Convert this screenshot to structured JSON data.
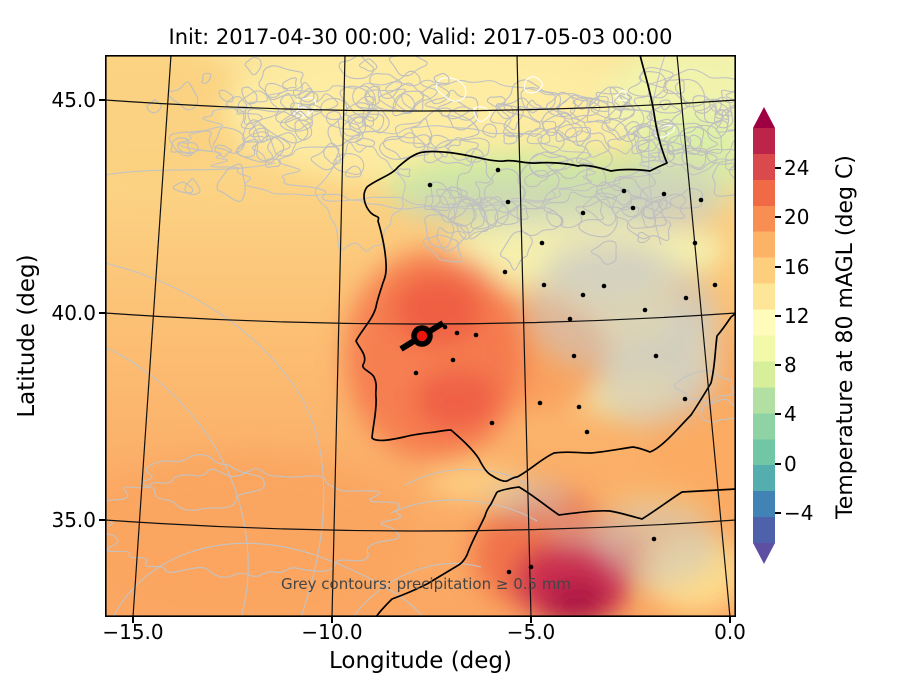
{
  "figure": {
    "title": "Init: 2017-04-30 00:00; Valid: 2017-05-03 00:00",
    "annotation": "Grey contours: precipitation ≥ 0.5 mm"
  },
  "axes": {
    "x": {
      "label": "Longitude (deg)",
      "tick_labels": [
        "−15.0",
        "−10.0",
        "−5.0",
        "0.0"
      ]
    },
    "y": {
      "label": "Latitude (deg)",
      "tick_labels": [
        "45.0",
        "40.0",
        "35.0"
      ]
    }
  },
  "colorbar": {
    "label": "Temperature at 80 mAGL (deg C)",
    "tick_labels": [
      "24",
      "20",
      "16",
      "12",
      "8",
      "4",
      "0",
      "−4"
    ],
    "extend_over_color": "#9e0142",
    "extend_under_color": "#5e4fa2",
    "contour_grey": "#bfbfbf",
    "marker_color": "#e8160c"
  },
  "chart_data": {
    "type": "heatmap",
    "title": "Init: 2017-04-30 00:00; Valid: 2017-05-03 00:00",
    "xlabel": "Longitude (deg)",
    "ylabel": "Latitude (deg)",
    "xlim": [
      -15.7,
      0.2
    ],
    "ylim": [
      32.7,
      46.1
    ],
    "x_ticks": [
      -15.0,
      -10.0,
      -5.0,
      0.0
    ],
    "y_ticks": [
      45.0,
      40.0,
      35.0
    ],
    "colorbar": {
      "label": "Temperature at 80 mAGL (deg C)",
      "ticks": [
        24,
        20,
        16,
        12,
        8,
        4,
        0,
        -4
      ],
      "colormap": "Spectral reversed (purple-blue low to dark crimson high)",
      "extends": "both"
    },
    "overlay_contours": {
      "color": "grey",
      "meaning": "precipitation ≥ 0.5 mm"
    },
    "site_marker": {
      "approx_lon": -7.8,
      "approx_lat": 39.5,
      "style": "red dot with black ring"
    },
    "region": "Iberian Peninsula, Bay of Biscay, NW Africa",
    "grid": "black lat/lon graticule every 5 deg"
  }
}
